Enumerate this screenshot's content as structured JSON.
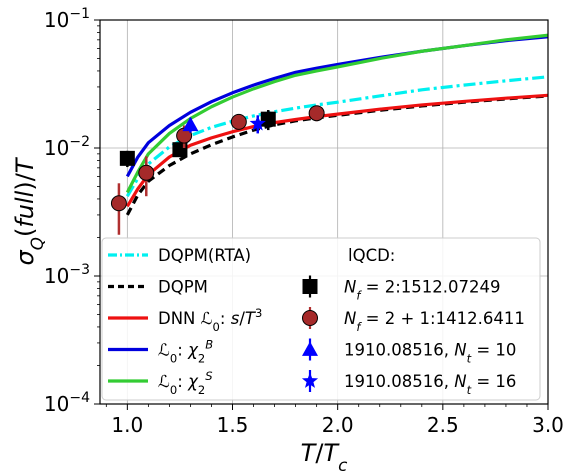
{
  "chart_data": {
    "type": "line",
    "xlabel": "T/T_c",
    "ylabel": "σ_Q(full)/T",
    "xlim": [
      0.87,
      3.0
    ],
    "ylim": [
      0.0001,
      0.1
    ],
    "yscale": "log",
    "grid": true,
    "legend_position": "bottom-left",
    "x_ticks": [
      1.0,
      1.5,
      2.0,
      2.5,
      3.0
    ],
    "x_tick_labels": [
      "1.0",
      "1.5",
      "2.0",
      "2.5",
      "3.0"
    ],
    "y_ticks": [
      0.0001,
      0.001,
      0.01,
      0.1
    ],
    "y_tick_labels": [
      {
        "base": "10",
        "exp": "−4"
      },
      {
        "base": "10",
        "exp": "−3"
      },
      {
        "base": "10",
        "exp": "−2"
      },
      {
        "base": "10",
        "exp": "−1"
      }
    ],
    "series": [
      {
        "name": "DQPM(RTA)",
        "kind": "line",
        "style": "dashdot",
        "color": "#00f0f0",
        "x": [
          1.0,
          1.05,
          1.1,
          1.2,
          1.3,
          1.4,
          1.5,
          1.6,
          1.7,
          1.8,
          1.9,
          2.0,
          2.2,
          2.4,
          2.6,
          2.8,
          3.0
        ],
        "y": [
          0.0042,
          0.0058,
          0.0075,
          0.0102,
          0.0125,
          0.0145,
          0.0162,
          0.0178,
          0.0192,
          0.0205,
          0.0217,
          0.0228,
          0.0255,
          0.0285,
          0.031,
          0.0335,
          0.036
        ]
      },
      {
        "name": "DQPM",
        "kind": "line",
        "style": "dashed",
        "color": "#000000",
        "x": [
          1.0,
          1.05,
          1.1,
          1.2,
          1.3,
          1.4,
          1.5,
          1.6,
          1.7,
          1.8,
          1.9,
          2.0,
          2.2,
          2.4,
          2.6,
          2.8,
          3.0
        ],
        "y": [
          0.003,
          0.0043,
          0.0055,
          0.0073,
          0.009,
          0.0106,
          0.0122,
          0.0138,
          0.0152,
          0.0163,
          0.0172,
          0.018,
          0.0197,
          0.0213,
          0.0228,
          0.0242,
          0.0255
        ]
      },
      {
        "name": "DNN $\\mathcal{L}_0$: $s/T^3$",
        "kind": "line",
        "style": "solid",
        "color": "#ee1111",
        "x": [
          1.0,
          1.05,
          1.1,
          1.2,
          1.3,
          1.4,
          1.5,
          1.6,
          1.7,
          1.8,
          1.9,
          2.0,
          2.2,
          2.4,
          2.6,
          2.8,
          3.0
        ],
        "y": [
          0.0035,
          0.0048,
          0.0062,
          0.0085,
          0.0105,
          0.012,
          0.0134,
          0.0147,
          0.0158,
          0.0167,
          0.0176,
          0.0184,
          0.0201,
          0.0217,
          0.0231,
          0.0245,
          0.0258
        ]
      },
      {
        "name": "$\\mathcal{L}_0$: $\\chi_2^B$",
        "kind": "line",
        "style": "solid",
        "color": "#0000dd",
        "x": [
          1.0,
          1.05,
          1.1,
          1.2,
          1.3,
          1.4,
          1.5,
          1.6,
          1.7,
          1.8,
          1.9,
          2.0,
          2.2,
          2.4,
          2.6,
          2.8,
          3.0
        ],
        "y": [
          0.006,
          0.0085,
          0.011,
          0.015,
          0.019,
          0.023,
          0.027,
          0.031,
          0.035,
          0.039,
          0.042,
          0.045,
          0.051,
          0.057,
          0.063,
          0.069,
          0.074
        ]
      },
      {
        "name": "$\\mathcal{L}_0$: $\\chi_2^S$",
        "kind": "line",
        "style": "solid",
        "color": "#33cc33",
        "x": [
          1.0,
          1.05,
          1.1,
          1.2,
          1.3,
          1.4,
          1.5,
          1.6,
          1.7,
          1.8,
          1.9,
          2.0,
          2.2,
          2.4,
          2.6,
          2.8,
          3.0
        ],
        "y": [
          0.0045,
          0.0065,
          0.009,
          0.013,
          0.017,
          0.021,
          0.025,
          0.029,
          0.033,
          0.037,
          0.04,
          0.043,
          0.05,
          0.057,
          0.063,
          0.07,
          0.076
        ]
      },
      {
        "name": "$N_f=2$:1512.07249",
        "kind": "points",
        "marker": "square",
        "color": "#000000",
        "x": [
          1.0,
          1.25,
          1.67
        ],
        "y": [
          0.0083,
          0.0097,
          0.0168
        ],
        "yerr": [
          0.0012,
          0.0012,
          0.003
        ]
      },
      {
        "name": "$N_f=2+1$:1412.6411",
        "kind": "points",
        "marker": "circle",
        "color": "#a52a2a",
        "x": [
          0.96,
          1.09,
          1.27,
          1.53,
          1.9
        ],
        "y": [
          0.0037,
          0.0064,
          0.0125,
          0.016,
          0.0187
        ],
        "yerr": [
          0.0016,
          0.0022,
          0.0025,
          0.0018,
          0.0025
        ]
      },
      {
        "name": "1910.08516, $N_t=10$",
        "kind": "points",
        "marker": "triangle",
        "color": "#0000ff",
        "x": [
          1.3
        ],
        "y": [
          0.0152
        ],
        "yerr": [
          0.002
        ]
      },
      {
        "name": "1910.08516, $N_t=16$",
        "kind": "points",
        "marker": "star",
        "color": "#0000ff",
        "x": [
          1.62
        ],
        "y": [
          0.0155
        ],
        "yerr": [
          0.0025
        ]
      }
    ],
    "legend": {
      "lqcd_header": "lQCD:",
      "entries": [
        {
          "parts": [
            {
              "t": "DQPM(RTA)"
            }
          ]
        },
        {
          "parts": [
            {
              "t": "DQPM"
            }
          ]
        },
        {
          "parts": [
            {
              "t": "DNN "
            },
            {
              "t": "ℒ",
              "i": true
            },
            {
              "t": "0",
              "sub": true
            },
            {
              "t": ": "
            },
            {
              "t": "s",
              "i": true
            },
            {
              "t": "/"
            },
            {
              "t": "T",
              "i": true
            },
            {
              "t": "3",
              "sup": true
            }
          ]
        },
        {
          "parts": [
            {
              "t": "ℒ",
              "i": true
            },
            {
              "t": "0",
              "sub": true
            },
            {
              "t": ": "
            },
            {
              "t": "χ",
              "i": true
            },
            {
              "t": "2",
              "sub": true
            },
            {
              "t": "B",
              "sup": true,
              "i": true
            }
          ]
        },
        {
          "parts": [
            {
              "t": "ℒ",
              "i": true
            },
            {
              "t": "0",
              "sub": true
            },
            {
              "t": ": "
            },
            {
              "t": "χ",
              "i": true
            },
            {
              "t": "2",
              "sub": true
            },
            {
              "t": "S",
              "sup": true,
              "i": true
            }
          ]
        },
        {
          "parts": [
            {
              "t": "N",
              "i": true
            },
            {
              "t": "f",
              "sub": true,
              "i": true
            },
            {
              "t": " = 2:1512.07249"
            }
          ]
        },
        {
          "parts": [
            {
              "t": "N",
              "i": true
            },
            {
              "t": "f",
              "sub": true,
              "i": true
            },
            {
              "t": " = 2 + 1:1412.6411"
            }
          ]
        },
        {
          "parts": [
            {
              "t": "1910.08516, "
            },
            {
              "t": "N",
              "i": true
            },
            {
              "t": "t",
              "sub": true,
              "i": true
            },
            {
              "t": " = 10"
            }
          ]
        },
        {
          "parts": [
            {
              "t": "1910.08516, "
            },
            {
              "t": "N",
              "i": true
            },
            {
              "t": "t",
              "sub": true,
              "i": true
            },
            {
              "t": " = 16"
            }
          ]
        }
      ]
    },
    "axis_label_parts": {
      "x": [
        {
          "t": "T",
          "i": true
        },
        {
          "t": "/"
        },
        {
          "t": "T",
          "i": true
        },
        {
          "t": "c",
          "sub": true,
          "i": true
        }
      ],
      "y": [
        {
          "t": "σ",
          "i": true
        },
        {
          "t": "Q",
          "sub": true,
          "i": true
        },
        {
          "t": "("
        },
        {
          "t": "full",
          "i": true
        },
        {
          "t": ")/"
        },
        {
          "t": "T",
          "i": true
        }
      ]
    }
  }
}
